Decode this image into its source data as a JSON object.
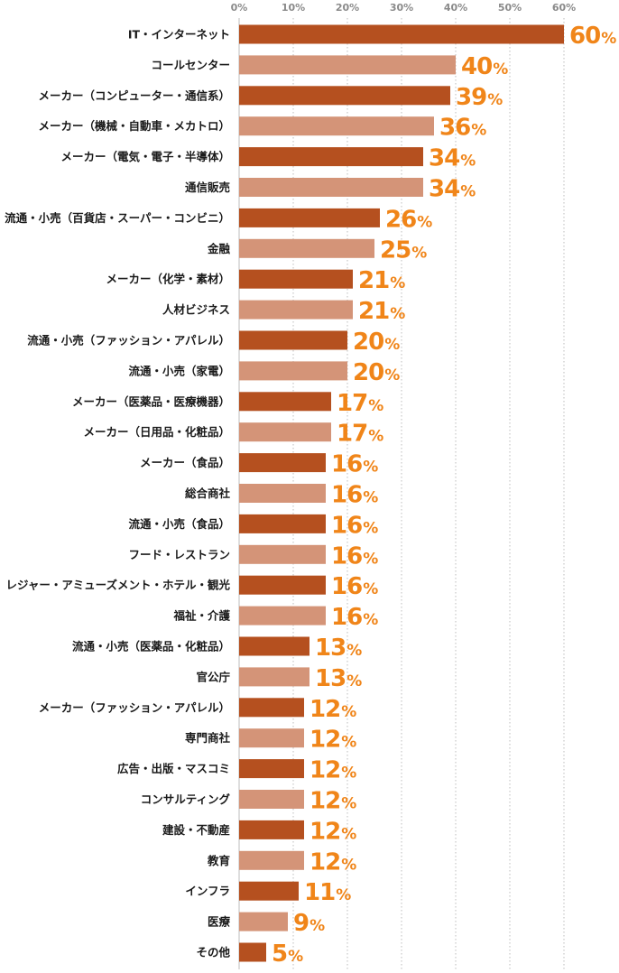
{
  "chart_data": {
    "type": "bar",
    "orientation": "horizontal",
    "categories": [
      "IT・インターネット",
      "コールセンター",
      "メーカー（コンピューター・通信系）",
      "メーカー（機械・自動車・メカトロ）",
      "メーカー（電気・電子・半導体）",
      "通信販売",
      "流通・小売（百貨店・スーパー・コンビニ）",
      "金融",
      "メーカー（化学・素材）",
      "人材ビジネス",
      "流通・小売（ファッション・アパレル）",
      "流通・小売（家電）",
      "メーカー（医薬品・医療機器）",
      "メーカー（日用品・化粧品）",
      "メーカー（食品）",
      "総合商社",
      "流通・小売（食品）",
      "フード・レストラン",
      "レジャー・アミューズメント・ホテル・観光",
      "福祉・介護",
      "流通・小売（医薬品・化粧品）",
      "官公庁",
      "メーカー（ファッション・アパレル）",
      "専門商社",
      "広告・出版・マスコミ",
      "コンサルティング",
      "建設・不動産",
      "教育",
      "インフラ",
      "医療",
      "その他"
    ],
    "values": [
      60,
      40,
      39,
      36,
      34,
      34,
      26,
      25,
      21,
      21,
      20,
      20,
      17,
      17,
      16,
      16,
      16,
      16,
      16,
      16,
      13,
      13,
      12,
      12,
      12,
      12,
      12,
      12,
      11,
      9,
      5
    ],
    "value_suffix": "%",
    "xlim": [
      0,
      70
    ],
    "x_ticks": [
      "0%",
      "10%",
      "20%",
      "30%",
      "40%",
      "50%",
      "60%"
    ],
    "x_tick_values": [
      0,
      10,
      20,
      30,
      40,
      50,
      60
    ],
    "tick_position": "top",
    "grid": "vertical dotted",
    "legend": "none",
    "colors": {
      "bar_dark": "#b5501f",
      "bar_light": "#d49478",
      "value_label": "#f08519",
      "grid": "#bdbdbd",
      "tick_label": "#8a8a8a",
      "category_label": "#1a1a1a"
    }
  }
}
